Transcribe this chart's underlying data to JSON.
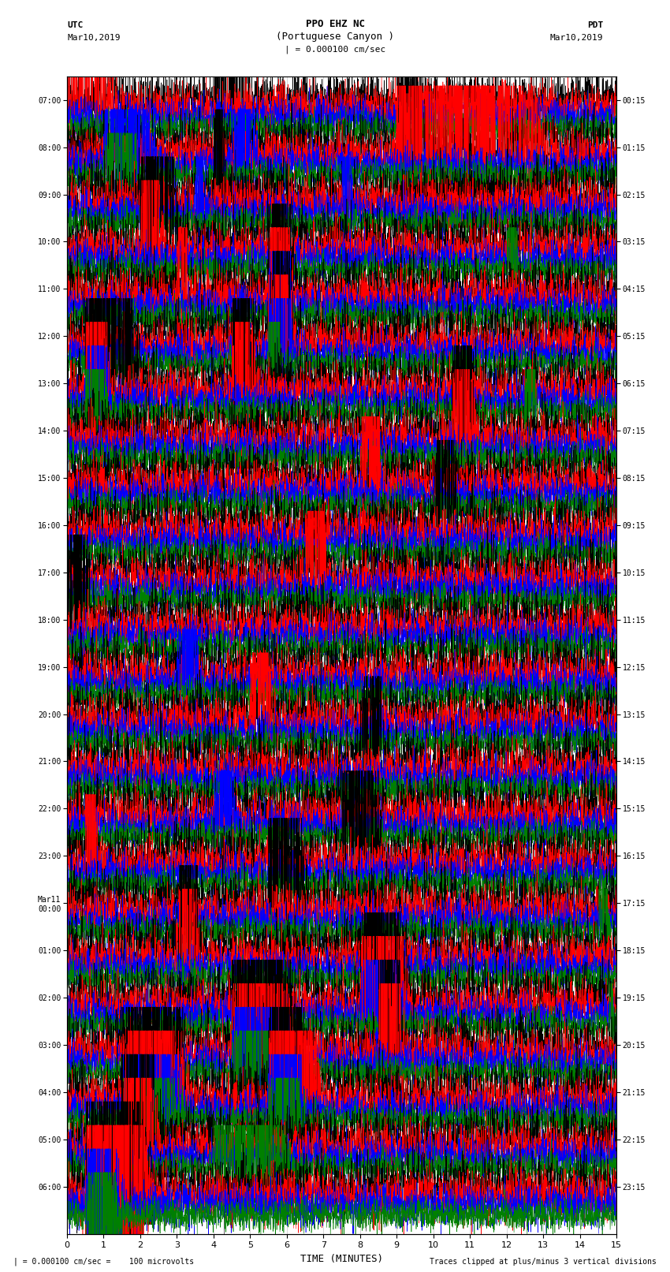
{
  "title_line1": "PPO EHZ NC",
  "title_line2": "(Portuguese Canyon )",
  "title_line3": "| = 0.000100 cm/sec",
  "label_utc": "UTC",
  "label_date_left": "Mar10,2019",
  "label_pdt": "PDT",
  "label_date_right": "Mar10,2019",
  "xlabel": "TIME (MINUTES)",
  "footer_left": "| = 0.000100 cm/sec =    100 microvolts",
  "footer_right": "Traces clipped at plus/minus 3 vertical divisions",
  "trace_colors_cycle": [
    "black",
    "red",
    "blue",
    "green"
  ],
  "n_groups": 24,
  "traces_per_group": 4,
  "xlim": [
    0,
    15
  ],
  "xticks": [
    0,
    1,
    2,
    3,
    4,
    5,
    6,
    7,
    8,
    9,
    10,
    11,
    12,
    13,
    14,
    15
  ],
  "background_color": "#ffffff",
  "left_labels_utc": [
    "07:00",
    "08:00",
    "09:00",
    "10:00",
    "11:00",
    "12:00",
    "13:00",
    "14:00",
    "15:00",
    "16:00",
    "17:00",
    "18:00",
    "19:00",
    "20:00",
    "21:00",
    "22:00",
    "23:00",
    "Mar11\n00:00",
    "01:00",
    "02:00",
    "03:00",
    "04:00",
    "05:00",
    "06:00"
  ],
  "right_labels_pdt": [
    "00:15",
    "01:15",
    "02:15",
    "03:15",
    "04:15",
    "05:15",
    "06:15",
    "07:15",
    "08:15",
    "09:15",
    "10:15",
    "11:15",
    "12:15",
    "13:15",
    "14:15",
    "15:15",
    "16:15",
    "17:15",
    "18:15",
    "19:15",
    "20:15",
    "21:15",
    "22:15",
    "23:15"
  ]
}
